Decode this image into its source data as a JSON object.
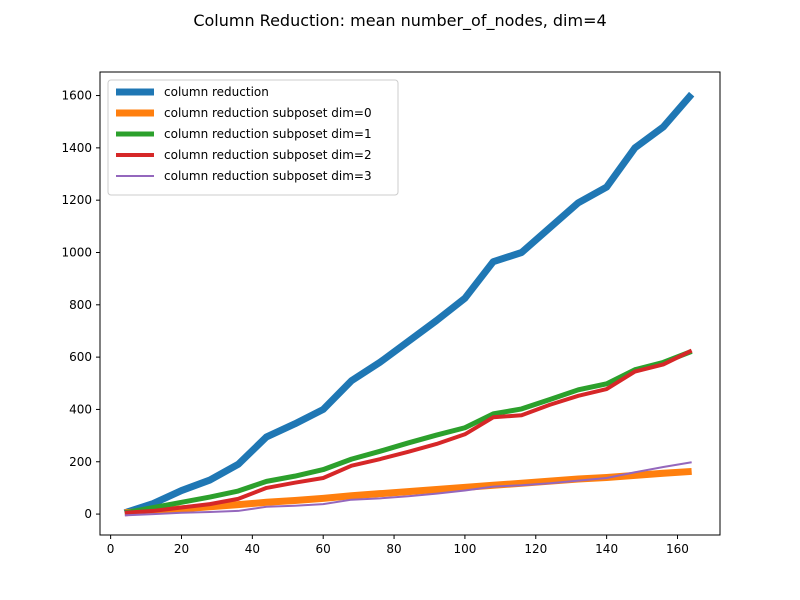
{
  "chart_data": {
    "type": "line",
    "title": "Column Reduction: mean number_of_nodes, dim=4",
    "xlabel": "",
    "ylabel": "",
    "xlim": [
      -3,
      172
    ],
    "ylim": [
      -80,
      1690
    ],
    "xticks": [
      0,
      20,
      40,
      60,
      80,
      100,
      120,
      140,
      160
    ],
    "yticks": [
      0,
      200,
      400,
      600,
      800,
      1000,
      1200,
      1400,
      1600
    ],
    "grid": false,
    "legend_position": "top-left",
    "x": [
      4,
      12,
      20,
      28,
      36,
      44,
      52,
      60,
      68,
      76,
      84,
      92,
      100,
      108,
      116,
      124,
      132,
      140,
      148,
      156,
      164
    ],
    "series": [
      {
        "name": "column reduction",
        "color": "#1f77b4",
        "values": [
          5,
          40,
          90,
          130,
          190,
          295,
          345,
          400,
          510,
          580,
          660,
          740,
          825,
          965,
          1000,
          1095,
          1190,
          1250,
          1400,
          1480,
          1605
        ]
      },
      {
        "name": "column reduction subposet dim=0",
        "color": "#ff7f0e",
        "values": [
          5,
          12,
          20,
          28,
          36,
          45,
          52,
          60,
          70,
          78,
          86,
          94,
          102,
          110,
          118,
          126,
          134,
          140,
          148,
          156,
          163
        ]
      },
      {
        "name": "column reduction subposet dim=1",
        "color": "#2ca02c",
        "values": [
          5,
          25,
          45,
          65,
          88,
          125,
          145,
          170,
          210,
          240,
          272,
          302,
          330,
          383,
          402,
          438,
          475,
          498,
          552,
          580,
          622
        ]
      },
      {
        "name": "column reduction subposet dim=2",
        "color": "#d62728",
        "values": [
          5,
          12,
          25,
          38,
          58,
          100,
          120,
          138,
          185,
          210,
          238,
          268,
          305,
          370,
          378,
          418,
          452,
          478,
          545,
          572,
          625
        ]
      },
      {
        "name": "column reduction subposet dim=3",
        "color": "#9467bd",
        "values": [
          -5,
          0,
          5,
          8,
          12,
          28,
          32,
          38,
          55,
          60,
          68,
          78,
          90,
          105,
          110,
          118,
          128,
          138,
          160,
          180,
          198
        ]
      }
    ]
  }
}
